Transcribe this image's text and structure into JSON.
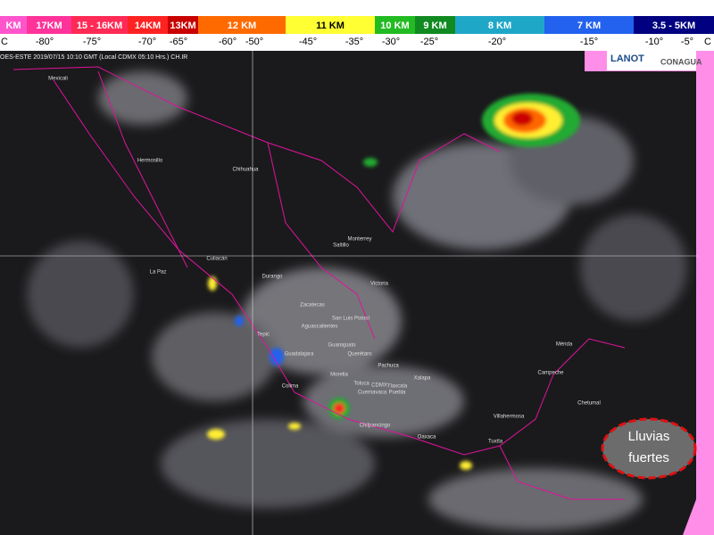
{
  "scale": {
    "bands": [
      {
        "label": "KM",
        "color": "#ff55cc"
      },
      {
        "label": "17KM",
        "color": "#ff3399"
      },
      {
        "label": "15 - 16KM",
        "color": "#ff2a55"
      },
      {
        "label": "14KM",
        "color": "#ff2222"
      },
      {
        "label": "13KM",
        "color": "#c80000"
      },
      {
        "label": "12 KM",
        "color": "#ff6a00"
      },
      {
        "label": "11 KM",
        "color": "#ffff33"
      },
      {
        "label": "10 KM",
        "color": "#22bb22"
      },
      {
        "label": "9 KM",
        "color": "#118a22"
      },
      {
        "label": "8 KM",
        "color": "#1fa7c8"
      },
      {
        "label": "7 KM",
        "color": "#2262ee"
      },
      {
        "label": "3.5 - 5KM",
        "color": "#000080"
      }
    ],
    "temps": [
      "C",
      "-80°",
      "-75°",
      "-70°",
      "-65°",
      "-60°",
      "-50°",
      "-45°",
      "-35°",
      "-30°",
      "-25°",
      "-20°",
      "-15°",
      "-10°",
      "-5°",
      "C"
    ]
  },
  "image": {
    "caption": "OES-ESTE 2019/07/15 10:10 GMT (Local CDMX 05:10 Hrs.) CH.IR",
    "logos": [
      "LANOT",
      "CONAGUA"
    ],
    "cities": [
      "Mexicali",
      "Hermosillo",
      "Chihuahua",
      "Monterrey",
      "Saltillo",
      "La Paz",
      "Culiacán",
      "Durango",
      "Victoria",
      "Zacatecas",
      "San Luis Potosí",
      "Aguascalientes",
      "Tepic",
      "Guadalajara",
      "Guanajuato",
      "Querétaro",
      "Pachuca",
      "Morelia",
      "Colima",
      "Toluca",
      "CDMX",
      "Tlaxcala",
      "Puebla",
      "Cuernavaca",
      "Xalapa",
      "Chilpancingo",
      "Oaxaca",
      "Villahermosa",
      "Tuxtla",
      "Mérida",
      "Campeche",
      "Chetumal"
    ]
  },
  "callout": {
    "lines": [
      "Lluvias",
      "fuertes"
    ]
  }
}
